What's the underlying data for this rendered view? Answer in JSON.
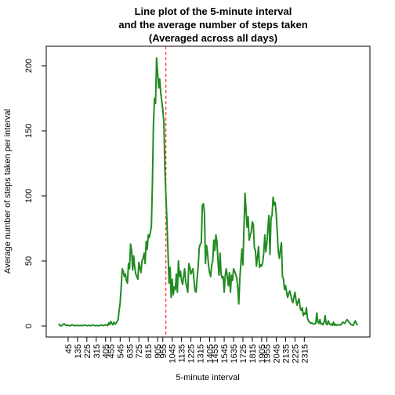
{
  "chart_data": {
    "type": "line",
    "title_lines": [
      "Line plot of the 5-minute interval",
      "and the average number of steps taken",
      "(Averaged across all days)"
    ],
    "xlabel": "5-minute interval",
    "ylabel": "Average number of steps taken per interval",
    "x_index_range": [
      1,
      288
    ],
    "y_range": [
      0,
      206
    ],
    "y_ticks": [
      0,
      50,
      100,
      150,
      200
    ],
    "x_tick_labels": [
      "45",
      "135",
      "225",
      "315",
      "405",
      "455",
      "545",
      "635",
      "725",
      "815",
      "905",
      "955",
      "1045",
      "1135",
      "1225",
      "1315",
      "1405",
      "1455",
      "1545",
      "1635",
      "1725",
      "1815",
      "1905",
      "1955",
      "2045",
      "2135",
      "2225",
      "2315"
    ],
    "x_tick_index": [
      10,
      19,
      28,
      37,
      46,
      51,
      60,
      69,
      78,
      87,
      96,
      101,
      110,
      119,
      128,
      137,
      146,
      151,
      160,
      169,
      178,
      187,
      196,
      201,
      210,
      219,
      228,
      237
    ],
    "series": [
      {
        "color": "#228b22",
        "points": [
          [
            1,
            1.7
          ],
          [
            2,
            0.3
          ],
          [
            4,
            0.3
          ],
          [
            6,
            1.7
          ],
          [
            8,
            0.5
          ],
          [
            10,
            0.5
          ],
          [
            12,
            0.2
          ],
          [
            14,
            1.0
          ],
          [
            16,
            0.2
          ],
          [
            18,
            0.5
          ],
          [
            20,
            0.3
          ],
          [
            22,
            0.5
          ],
          [
            24,
            0.3
          ],
          [
            26,
            0.7
          ],
          [
            28,
            0.2
          ],
          [
            30,
            0.5
          ],
          [
            32,
            0.3
          ],
          [
            34,
            0.7
          ],
          [
            36,
            0.2
          ],
          [
            38,
            0.4
          ],
          [
            40,
            0.3
          ],
          [
            42,
            0.8
          ],
          [
            44,
            0.3
          ],
          [
            46,
            1.0
          ],
          [
            48,
            0.3
          ],
          [
            49,
            2.5
          ],
          [
            50,
            1.0
          ],
          [
            51,
            3.5
          ],
          [
            52,
            2.0
          ],
          [
            53,
            1.0
          ],
          [
            54,
            3.0
          ],
          [
            55,
            1.5
          ],
          [
            56,
            2.0
          ],
          [
            57,
            3.5
          ],
          [
            58,
            5.0
          ],
          [
            59,
            12
          ],
          [
            60,
            18
          ],
          [
            61,
            30
          ],
          [
            62,
            44
          ],
          [
            63,
            42
          ],
          [
            64,
            38
          ],
          [
            65,
            40
          ],
          [
            66,
            35
          ],
          [
            67,
            33
          ],
          [
            68,
            48
          ],
          [
            69,
            44
          ],
          [
            70,
            63
          ],
          [
            71,
            58
          ],
          [
            72,
            43
          ],
          [
            73,
            54
          ],
          [
            74,
            45
          ],
          [
            75,
            40
          ],
          [
            76,
            38
          ],
          [
            77,
            36
          ],
          [
            78,
            49
          ],
          [
            79,
            45
          ],
          [
            80,
            41
          ],
          [
            81,
            50
          ],
          [
            82,
            52
          ],
          [
            83,
            56
          ],
          [
            84,
            48
          ],
          [
            85,
            65
          ],
          [
            86,
            59
          ],
          [
            87,
            70
          ],
          [
            88,
            68
          ],
          [
            89,
            72
          ],
          [
            90,
            76
          ],
          [
            91,
            110
          ],
          [
            92,
            155
          ],
          [
            93,
            175
          ],
          [
            94,
            171
          ],
          [
            95,
            206
          ],
          [
            96,
            195
          ],
          [
            97,
            183
          ],
          [
            98,
            190
          ],
          [
            99,
            179
          ],
          [
            100,
            173
          ],
          [
            101,
            166
          ],
          [
            102,
            157
          ],
          [
            103,
            122
          ],
          [
            104,
            100
          ],
          [
            105,
            80
          ],
          [
            106,
            56
          ],
          [
            107,
            33
          ],
          [
            108,
            45
          ],
          [
            109,
            22
          ],
          [
            110,
            36
          ],
          [
            111,
            24
          ],
          [
            112,
            30
          ],
          [
            113,
            28
          ],
          [
            114,
            40
          ],
          [
            115,
            26
          ],
          [
            116,
            50
          ],
          [
            117,
            38
          ],
          [
            118,
            42
          ],
          [
            119,
            35
          ],
          [
            120,
            32
          ],
          [
            121,
            38
          ],
          [
            122,
            44
          ],
          [
            123,
            34
          ],
          [
            124,
            30
          ],
          [
            125,
            26
          ],
          [
            126,
            48
          ],
          [
            127,
            45
          ],
          [
            128,
            40
          ],
          [
            129,
            42
          ],
          [
            130,
            44
          ],
          [
            131,
            35
          ],
          [
            132,
            27
          ],
          [
            133,
            26
          ],
          [
            134,
            37
          ],
          [
            135,
            46
          ],
          [
            136,
            60
          ],
          [
            137,
            63
          ],
          [
            138,
            64
          ],
          [
            139,
            93
          ],
          [
            140,
            94
          ],
          [
            141,
            87
          ],
          [
            142,
            48
          ],
          [
            143,
            62
          ],
          [
            144,
            56
          ],
          [
            145,
            46
          ],
          [
            146,
            41
          ],
          [
            147,
            38
          ],
          [
            148,
            47
          ],
          [
            149,
            50
          ],
          [
            150,
            66
          ],
          [
            151,
            58
          ],
          [
            152,
            70
          ],
          [
            153,
            65
          ],
          [
            154,
            50
          ],
          [
            155,
            39
          ],
          [
            156,
            56
          ],
          [
            157,
            40
          ],
          [
            158,
            37
          ],
          [
            159,
            38
          ],
          [
            160,
            26
          ],
          [
            161,
            39
          ],
          [
            162,
            44
          ],
          [
            163,
            38
          ],
          [
            164,
            31
          ],
          [
            165,
            41
          ],
          [
            166,
            26
          ],
          [
            167,
            39
          ],
          [
            168,
            35
          ],
          [
            169,
            44
          ],
          [
            170,
            42
          ],
          [
            171,
            40
          ],
          [
            172,
            37
          ],
          [
            173,
            30
          ],
          [
            174,
            17
          ],
          [
            175,
            36
          ],
          [
            176,
            48
          ],
          [
            177,
            59
          ],
          [
            178,
            47
          ],
          [
            179,
            76
          ],
          [
            180,
            102
          ],
          [
            181,
            89
          ],
          [
            182,
            76
          ],
          [
            183,
            84
          ],
          [
            184,
            66
          ],
          [
            185,
            70
          ],
          [
            186,
            72
          ],
          [
            187,
            80
          ],
          [
            188,
            78
          ],
          [
            189,
            60
          ],
          [
            190,
            58
          ],
          [
            191,
            46
          ],
          [
            192,
            53
          ],
          [
            193,
            61
          ],
          [
            194,
            45
          ],
          [
            195,
            47
          ],
          [
            196,
            46
          ],
          [
            197,
            49
          ],
          [
            198,
            56
          ],
          [
            199,
            70
          ],
          [
            200,
            57
          ],
          [
            201,
            64
          ],
          [
            202,
            75
          ],
          [
            203,
            85
          ],
          [
            204,
            55
          ],
          [
            205,
            83
          ],
          [
            206,
            85
          ],
          [
            207,
            99
          ],
          [
            208,
            93
          ],
          [
            209,
            95
          ],
          [
            210,
            86
          ],
          [
            211,
            72
          ],
          [
            212,
            57
          ],
          [
            213,
            52
          ],
          [
            214,
            59
          ],
          [
            215,
            64
          ],
          [
            216,
            38
          ],
          [
            217,
            36
          ],
          [
            218,
            28
          ],
          [
            219,
            31
          ],
          [
            220,
            26
          ],
          [
            221,
            22
          ],
          [
            222,
            25
          ],
          [
            223,
            27
          ],
          [
            224,
            24
          ],
          [
            225,
            20
          ],
          [
            226,
            18
          ],
          [
            227,
            22
          ],
          [
            228,
            26
          ],
          [
            229,
            20
          ],
          [
            230,
            16
          ],
          [
            231,
            19
          ],
          [
            232,
            21
          ],
          [
            233,
            14
          ],
          [
            234,
            12
          ],
          [
            235,
            14
          ],
          [
            236,
            8
          ],
          [
            237,
            10
          ],
          [
            238,
            9
          ],
          [
            239,
            14
          ],
          [
            240,
            6
          ],
          [
            241,
            4
          ],
          [
            242,
            3
          ],
          [
            243,
            2
          ],
          [
            244,
            2.5
          ],
          [
            246,
            1.5
          ],
          [
            248,
            2
          ],
          [
            249,
            10
          ],
          [
            250,
            3
          ],
          [
            251,
            2
          ],
          [
            252,
            5
          ],
          [
            253,
            1.5
          ],
          [
            254,
            2
          ],
          [
            255,
            1
          ],
          [
            256,
            3
          ],
          [
            257,
            8
          ],
          [
            258,
            2
          ],
          [
            259,
            1
          ],
          [
            260,
            4
          ],
          [
            261,
            2
          ],
          [
            262,
            1
          ],
          [
            263,
            1.5
          ],
          [
            264,
            0.5
          ],
          [
            265,
            3
          ],
          [
            266,
            0.5
          ],
          [
            267,
            1.5
          ],
          [
            268,
            0.5
          ],
          [
            270,
            1
          ],
          [
            272,
            0.8
          ],
          [
            274,
            3
          ],
          [
            276,
            2
          ],
          [
            278,
            5
          ],
          [
            280,
            3
          ],
          [
            282,
            1
          ],
          [
            284,
            0.5
          ],
          [
            286,
            4
          ],
          [
            288,
            0.5
          ]
        ]
      }
    ],
    "reference_line": {
      "x_index": 104,
      "color": "#ff0000",
      "style": "dashed"
    },
    "grid": false,
    "legend": "none"
  }
}
